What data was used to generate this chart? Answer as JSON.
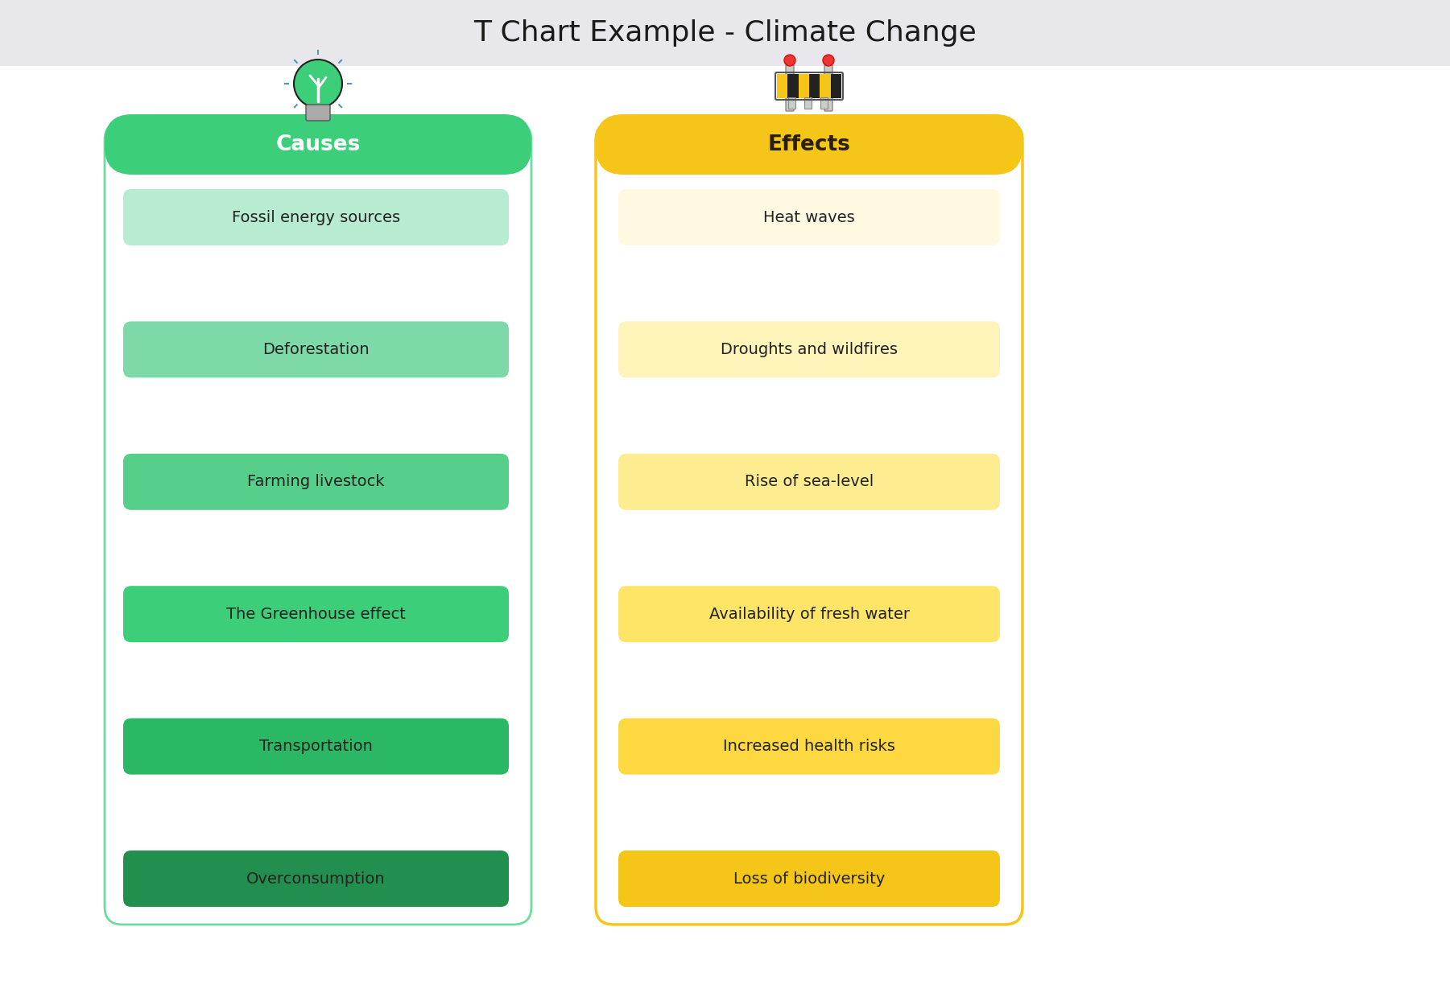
{
  "title": "T Chart Example - Climate Change",
  "title_fontsize": 26,
  "title_bg": "#e8e8ec",
  "content_bg": "#ffffff",
  "left_column": {
    "header": "Causes",
    "header_bg": "#3dce7a",
    "header_text_color": "#ffffff",
    "border_color": "#6ddd9e",
    "items": [
      "Fossil energy sources",
      "Deforestation",
      "Farming livestock",
      "The Greenhouse effect",
      "Transportation",
      "Overconsumption"
    ],
    "item_colors": [
      "#b8ecd0",
      "#7dd9a8",
      "#55cf89",
      "#3dce7a",
      "#2ab865",
      "#228f4e"
    ]
  },
  "right_column": {
    "header": "Effects",
    "header_bg": "#f5c518",
    "header_text_color": "#2a2000",
    "border_color": "#f5c518",
    "items": [
      "Heat waves",
      "Droughts and wildfires",
      "Rise of sea-level",
      "Availability of fresh water",
      "Increased health risks",
      "Loss of biodiversity"
    ],
    "item_colors": [
      "#fef9e0",
      "#fef3b8",
      "#feec90",
      "#fee568",
      "#fdd840",
      "#f5c518"
    ]
  }
}
